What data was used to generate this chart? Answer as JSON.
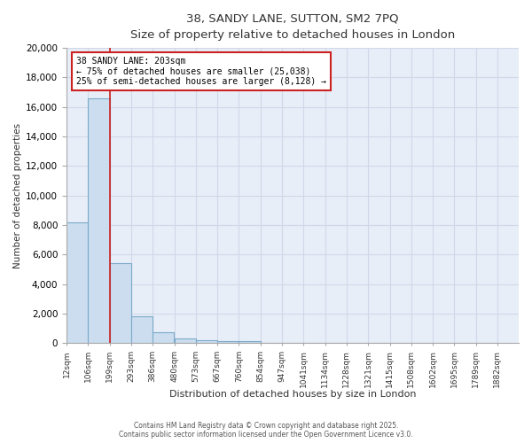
{
  "title_line1": "38, SANDY LANE, SUTTON, SM2 7PQ",
  "title_line2": "Size of property relative to detached houses in London",
  "xlabel": "Distribution of detached houses by size in London",
  "ylabel": "Number of detached properties",
  "bar_left_edges": [
    12,
    106,
    199,
    293,
    386,
    480,
    573,
    667,
    760,
    854,
    947,
    1041,
    1134,
    1228,
    1321,
    1415,
    1508,
    1602,
    1695,
    1789
  ],
  "bar_heights": [
    8200,
    16600,
    5400,
    1850,
    750,
    350,
    230,
    175,
    130,
    0,
    0,
    0,
    0,
    0,
    0,
    0,
    0,
    0,
    0,
    0
  ],
  "bin_width": 93,
  "bar_color": "#ccddf0",
  "bar_edge_color": "#7aaac8",
  "grid_color": "#d0d8e8",
  "property_line_x": 199,
  "annotation_text": "38 SANDY LANE: 203sqm\n← 75% of detached houses are smaller (25,038)\n25% of semi-detached houses are larger (8,128) →",
  "annotation_box_color": "#ffffff",
  "annotation_box_edge": "#cc2222",
  "annotation_text_color": "#000000",
  "property_line_color": "#cc2222",
  "ylim": [
    0,
    20000
  ],
  "yticks": [
    0,
    2000,
    4000,
    6000,
    8000,
    10000,
    12000,
    14000,
    16000,
    18000,
    20000
  ],
  "xtick_labels": [
    "12sqm",
    "106sqm",
    "199sqm",
    "293sqm",
    "386sqm",
    "480sqm",
    "573sqm",
    "667sqm",
    "760sqm",
    "854sqm",
    "947sqm",
    "1041sqm",
    "1134sqm",
    "1228sqm",
    "1321sqm",
    "1415sqm",
    "1508sqm",
    "1602sqm",
    "1695sqm",
    "1789sqm",
    "1882sqm"
  ],
  "xtick_positions": [
    12,
    106,
    199,
    293,
    386,
    480,
    573,
    667,
    760,
    854,
    947,
    1041,
    1134,
    1228,
    1321,
    1415,
    1508,
    1602,
    1695,
    1789,
    1882
  ],
  "footnote": "Contains HM Land Registry data © Crown copyright and database right 2025.\nContains public sector information licensed under the Open Government Licence v3.0.",
  "bg_color": "#ffffff",
  "plot_bg_color": "#e8eef8"
}
